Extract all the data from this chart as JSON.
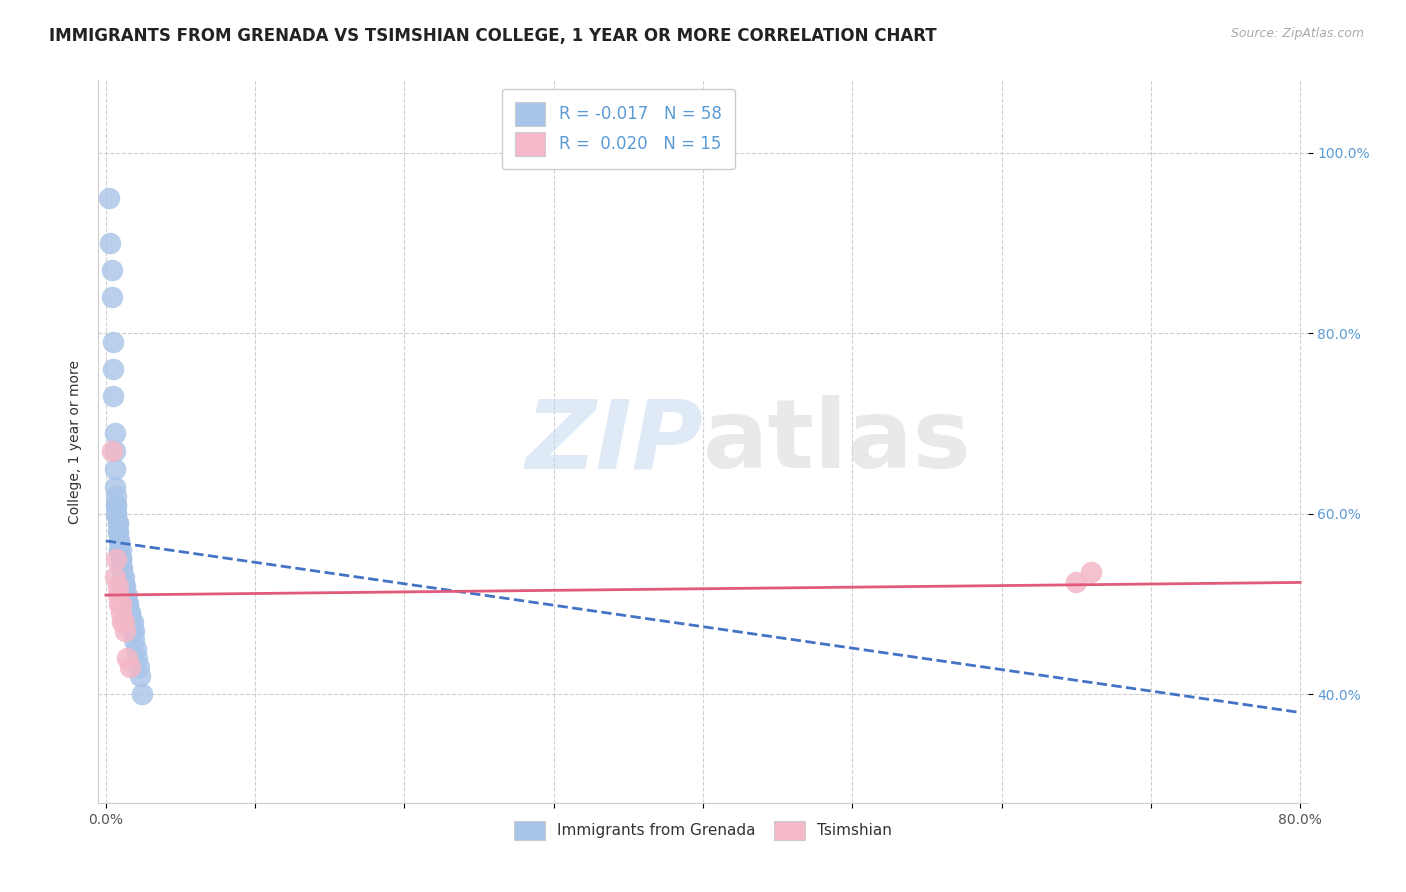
{
  "title": "IMMIGRANTS FROM GRENADA VS TSIMSHIAN COLLEGE, 1 YEAR OR MORE CORRELATION CHART",
  "source_text": "Source: ZipAtlas.com",
  "xlabel": "",
  "ylabel": "College, 1 year or more",
  "xlim": [
    -0.005,
    0.805
  ],
  "ylim": [
    0.28,
    1.08
  ],
  "xticks": [
    0.0,
    0.1,
    0.2,
    0.3,
    0.4,
    0.5,
    0.6,
    0.7,
    0.8
  ],
  "xtick_labels": [
    "0.0%",
    "",
    "",
    "",
    "",
    "",
    "",
    "",
    "80.0%"
  ],
  "yticks": [
    0.4,
    0.6,
    0.8,
    1.0
  ],
  "ytick_labels": [
    "40.0%",
    "60.0%",
    "80.0%",
    "100.0%"
  ],
  "watermark_zip": "ZIP",
  "watermark_atlas": "atlas",
  "legend_entry1": "R = -0.017   N = 58",
  "legend_entry2": "R =  0.020   N = 15",
  "blue_color": "#a8c4e8",
  "pink_color": "#f4b8c8",
  "blue_line_color": "#4472c4",
  "pink_line_color": "#e05a7a",
  "blue_scatter_x": [
    0.002,
    0.003,
    0.004,
    0.004,
    0.005,
    0.005,
    0.005,
    0.006,
    0.006,
    0.006,
    0.006,
    0.007,
    0.007,
    0.007,
    0.007,
    0.007,
    0.008,
    0.008,
    0.008,
    0.008,
    0.009,
    0.009,
    0.009,
    0.009,
    0.01,
    0.01,
    0.01,
    0.01,
    0.01,
    0.01,
    0.011,
    0.011,
    0.011,
    0.012,
    0.012,
    0.012,
    0.013,
    0.013,
    0.013,
    0.014,
    0.014,
    0.014,
    0.015,
    0.015,
    0.015,
    0.016,
    0.016,
    0.017,
    0.017,
    0.018,
    0.018,
    0.019,
    0.019,
    0.02,
    0.021,
    0.022,
    0.023,
    0.024
  ],
  "blue_scatter_y": [
    0.95,
    0.9,
    0.87,
    0.84,
    0.79,
    0.76,
    0.73,
    0.69,
    0.67,
    0.65,
    0.63,
    0.62,
    0.61,
    0.61,
    0.6,
    0.6,
    0.59,
    0.59,
    0.58,
    0.58,
    0.57,
    0.57,
    0.56,
    0.56,
    0.56,
    0.55,
    0.55,
    0.55,
    0.54,
    0.54,
    0.54,
    0.53,
    0.53,
    0.53,
    0.52,
    0.52,
    0.52,
    0.51,
    0.51,
    0.51,
    0.5,
    0.5,
    0.5,
    0.5,
    0.49,
    0.49,
    0.49,
    0.48,
    0.48,
    0.48,
    0.47,
    0.47,
    0.46,
    0.45,
    0.44,
    0.43,
    0.42,
    0.4
  ],
  "pink_scatter_x": [
    0.004,
    0.006,
    0.007,
    0.008,
    0.008,
    0.009,
    0.01,
    0.01,
    0.011,
    0.012,
    0.013,
    0.014,
    0.016,
    0.65,
    0.66
  ],
  "pink_scatter_y": [
    0.67,
    0.53,
    0.55,
    0.52,
    0.51,
    0.5,
    0.5,
    0.49,
    0.48,
    0.48,
    0.47,
    0.44,
    0.43,
    0.525,
    0.535
  ],
  "blue_trend_x": [
    0.0,
    0.8
  ],
  "blue_trend_y": [
    0.57,
    0.38
  ],
  "pink_trend_x": [
    0.0,
    0.8
  ],
  "pink_trend_y": [
    0.51,
    0.524
  ],
  "bg_color": "#ffffff",
  "grid_color": "#d0d0d0",
  "title_fontsize": 12,
  "axis_label_fontsize": 10,
  "tick_fontsize": 10
}
